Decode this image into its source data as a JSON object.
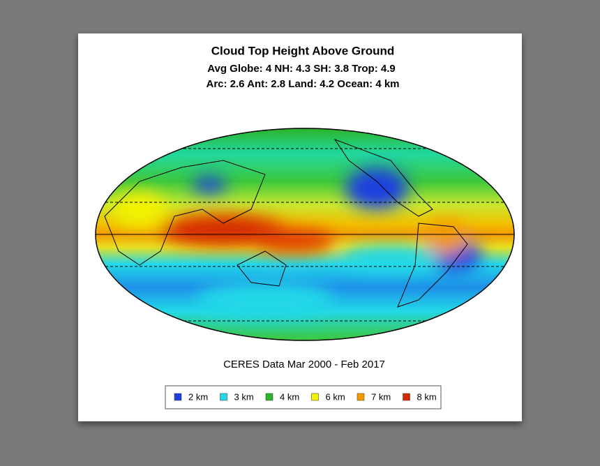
{
  "header": {
    "title": "Cloud Top Height Above Ground",
    "stats": [
      "Avg Globe: 4  NH: 4.3  SH: 3.8  Trop: 4.9",
      "Arc: 2.6  Ant: 2.8  Land: 4.2 Ocean: 4 km"
    ]
  },
  "source": "CERES Data Mar 2000 - Feb 2017",
  "legend": {
    "items": [
      {
        "label": "2 km",
        "color": "#1f3fe0"
      },
      {
        "label": "3 km",
        "color": "#22d8e8"
      },
      {
        "label": "4 km",
        "color": "#2ab52a"
      },
      {
        "label": "6 km",
        "color": "#f2f200"
      },
      {
        "label": "7 km",
        "color": "#f29a00"
      },
      {
        "label": "8 km",
        "color": "#d42a00"
      }
    ]
  }
}
